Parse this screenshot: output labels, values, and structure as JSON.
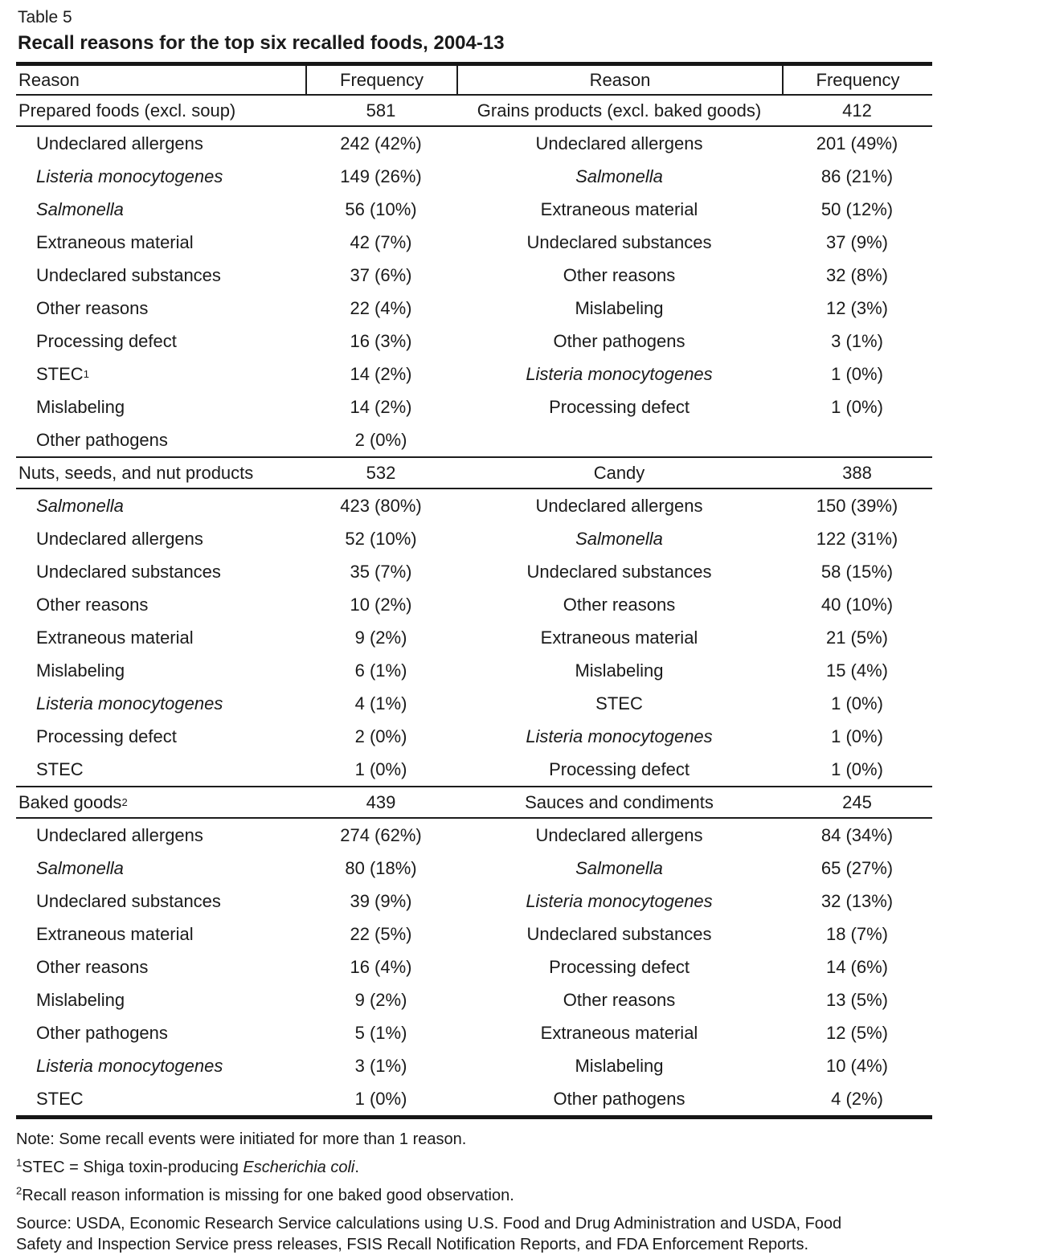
{
  "doc": {
    "label": "Table 5",
    "title": "Recall reasons for the top six recalled foods, 2004-13"
  },
  "headers": [
    "Reason",
    "Frequency",
    "Reason",
    "Frequency"
  ],
  "sections": [
    {
      "left": {
        "category": "Prepared foods (excl. soup)",
        "category_sup": "",
        "total": "581",
        "rows": [
          {
            "reason": "Undeclared allergens",
            "italic": false,
            "sup": "",
            "freq": "242 (42%)"
          },
          {
            "reason": "Listeria monocytogenes",
            "italic": true,
            "sup": "",
            "freq": "149 (26%)"
          },
          {
            "reason": "Salmonella",
            "italic": true,
            "sup": "",
            "freq": "56 (10%)"
          },
          {
            "reason": "Extraneous material",
            "italic": false,
            "sup": "",
            "freq": "42 (7%)"
          },
          {
            "reason": "Undeclared substances",
            "italic": false,
            "sup": "",
            "freq": "37 (6%)"
          },
          {
            "reason": "Other reasons",
            "italic": false,
            "sup": "",
            "freq": "22 (4%)"
          },
          {
            "reason": "Processing defect",
            "italic": false,
            "sup": "",
            "freq": "16 (3%)"
          },
          {
            "reason": "STEC",
            "italic": false,
            "sup": "1",
            "freq": "14 (2%)"
          },
          {
            "reason": "Mislabeling",
            "italic": false,
            "sup": "",
            "freq": "14 (2%)"
          },
          {
            "reason": "Other pathogens",
            "italic": false,
            "sup": "",
            "freq": "2 (0%)"
          }
        ]
      },
      "right": {
        "category": "Grains products (excl. baked goods)",
        "total": "412",
        "rows": [
          {
            "reason": "Undeclared allergens",
            "italic": false,
            "sup": "",
            "freq": "201 (49%)"
          },
          {
            "reason": "Salmonella",
            "italic": true,
            "sup": "",
            "freq": "86 (21%)"
          },
          {
            "reason": "Extraneous material",
            "italic": false,
            "sup": "",
            "freq": "50 (12%)"
          },
          {
            "reason": "Undeclared substances",
            "italic": false,
            "sup": "",
            "freq": "37 (9%)"
          },
          {
            "reason": "Other reasons",
            "italic": false,
            "sup": "",
            "freq": "32 (8%)"
          },
          {
            "reason": "Mislabeling",
            "italic": false,
            "sup": "",
            "freq": "12 (3%)"
          },
          {
            "reason": "Other pathogens",
            "italic": false,
            "sup": "",
            "freq": "3 (1%)"
          },
          {
            "reason": "Listeria monocytogenes",
            "italic": true,
            "sup": "",
            "freq": "1 (0%)"
          },
          {
            "reason": "Processing defect",
            "italic": false,
            "sup": "",
            "freq": "1 (0%)"
          }
        ]
      }
    },
    {
      "left": {
        "category": "Nuts, seeds, and nut products",
        "category_sup": "",
        "total": "532",
        "rows": [
          {
            "reason": "Salmonella",
            "italic": true,
            "sup": "",
            "freq": "423 (80%)"
          },
          {
            "reason": "Undeclared allergens",
            "italic": false,
            "sup": "",
            "freq": "52 (10%)"
          },
          {
            "reason": "Undeclared substances",
            "italic": false,
            "sup": "",
            "freq": "35 (7%)"
          },
          {
            "reason": "Other reasons",
            "italic": false,
            "sup": "",
            "freq": "10 (2%)"
          },
          {
            "reason": "Extraneous material",
            "italic": false,
            "sup": "",
            "freq": "9 (2%)"
          },
          {
            "reason": "Mislabeling",
            "italic": false,
            "sup": "",
            "freq": "6 (1%)"
          },
          {
            "reason": "Listeria monocytogenes",
            "italic": true,
            "sup": "",
            "freq": "4 (1%)"
          },
          {
            "reason": "Processing defect",
            "italic": false,
            "sup": "",
            "freq": "2 (0%)"
          },
          {
            "reason": "STEC",
            "italic": false,
            "sup": "",
            "freq": "1 (0%)"
          }
        ]
      },
      "right": {
        "category": "Candy",
        "total": "388",
        "rows": [
          {
            "reason": "Undeclared allergens",
            "italic": false,
            "sup": "",
            "freq": "150 (39%)"
          },
          {
            "reason": "Salmonella",
            "italic": true,
            "sup": "",
            "freq": "122 (31%)"
          },
          {
            "reason": "Undeclared substances",
            "italic": false,
            "sup": "",
            "freq": "58 (15%)"
          },
          {
            "reason": "Other reasons",
            "italic": false,
            "sup": "",
            "freq": "40 (10%)"
          },
          {
            "reason": "Extraneous material",
            "italic": false,
            "sup": "",
            "freq": "21 (5%)"
          },
          {
            "reason": "Mislabeling",
            "italic": false,
            "sup": "",
            "freq": "15 (4%)"
          },
          {
            "reason": "STEC",
            "italic": false,
            "sup": "",
            "freq": "1 (0%)"
          },
          {
            "reason": "Listeria monocytogenes",
            "italic": true,
            "sup": "",
            "freq": "1 (0%)"
          },
          {
            "reason": "Processing defect",
            "italic": false,
            "sup": "",
            "freq": "1 (0%)"
          }
        ]
      }
    },
    {
      "left": {
        "category": "Baked goods",
        "category_sup": "2",
        "total": "439",
        "rows": [
          {
            "reason": "Undeclared allergens",
            "italic": false,
            "sup": "",
            "freq": "274 (62%)"
          },
          {
            "reason": "Salmonella",
            "italic": true,
            "sup": "",
            "freq": "80 (18%)"
          },
          {
            "reason": "Undeclared substances",
            "italic": false,
            "sup": "",
            "freq": "39 (9%)"
          },
          {
            "reason": "Extraneous material",
            "italic": false,
            "sup": "",
            "freq": "22 (5%)"
          },
          {
            "reason": "Other reasons",
            "italic": false,
            "sup": "",
            "freq": "16 (4%)"
          },
          {
            "reason": "Mislabeling",
            "italic": false,
            "sup": "",
            "freq": "9 (2%)"
          },
          {
            "reason": "Other pathogens",
            "italic": false,
            "sup": "",
            "freq": "5 (1%)"
          },
          {
            "reason": "Listeria monocytogenes",
            "italic": true,
            "sup": "",
            "freq": "3 (1%)"
          },
          {
            "reason": "STEC",
            "italic": false,
            "sup": "",
            "freq": "1 (0%)"
          }
        ]
      },
      "right": {
        "category": "Sauces and condiments",
        "total": "245",
        "rows": [
          {
            "reason": "Undeclared allergens",
            "italic": false,
            "sup": "",
            "freq": "84 (34%)"
          },
          {
            "reason": "Salmonella",
            "italic": true,
            "sup": "",
            "freq": "65 (27%)"
          },
          {
            "reason": "Listeria monocytogenes",
            "italic": true,
            "sup": "",
            "freq": "32 (13%)"
          },
          {
            "reason": "Undeclared substances",
            "italic": false,
            "sup": "",
            "freq": "18 (7%)"
          },
          {
            "reason": "Processing defect",
            "italic": false,
            "sup": "",
            "freq": "14 (6%)"
          },
          {
            "reason": "Other reasons",
            "italic": false,
            "sup": "",
            "freq": "13 (5%)"
          },
          {
            "reason": "Extraneous material",
            "italic": false,
            "sup": "",
            "freq": "12 (5%)"
          },
          {
            "reason": "Mislabeling",
            "italic": false,
            "sup": "",
            "freq": "10 (4%)"
          },
          {
            "reason": "Other pathogens",
            "italic": false,
            "sup": "",
            "freq": "4 (2%)"
          }
        ]
      }
    }
  ],
  "notes": {
    "note": "Note: Some recall events were initiated for more than 1 reason.",
    "fn1": {
      "sup": "1",
      "pre": "STEC = Shiga toxin-producing ",
      "italic": "Escherichia coli",
      "post": "."
    },
    "fn2": {
      "sup": "2",
      "text": "Recall reason information is missing for one baked good observation."
    },
    "source": "Source: USDA, Economic Research Service calculations using U.S. Food and Drug Administration and USDA, Food\nSafety and Inspection Service press releases, FSIS Recall Notification Reports, and FDA Enforcement Reports."
  },
  "colors": {
    "text": "#1a1a1a",
    "rule": "#1c1c1c",
    "background": "#ffffff"
  }
}
